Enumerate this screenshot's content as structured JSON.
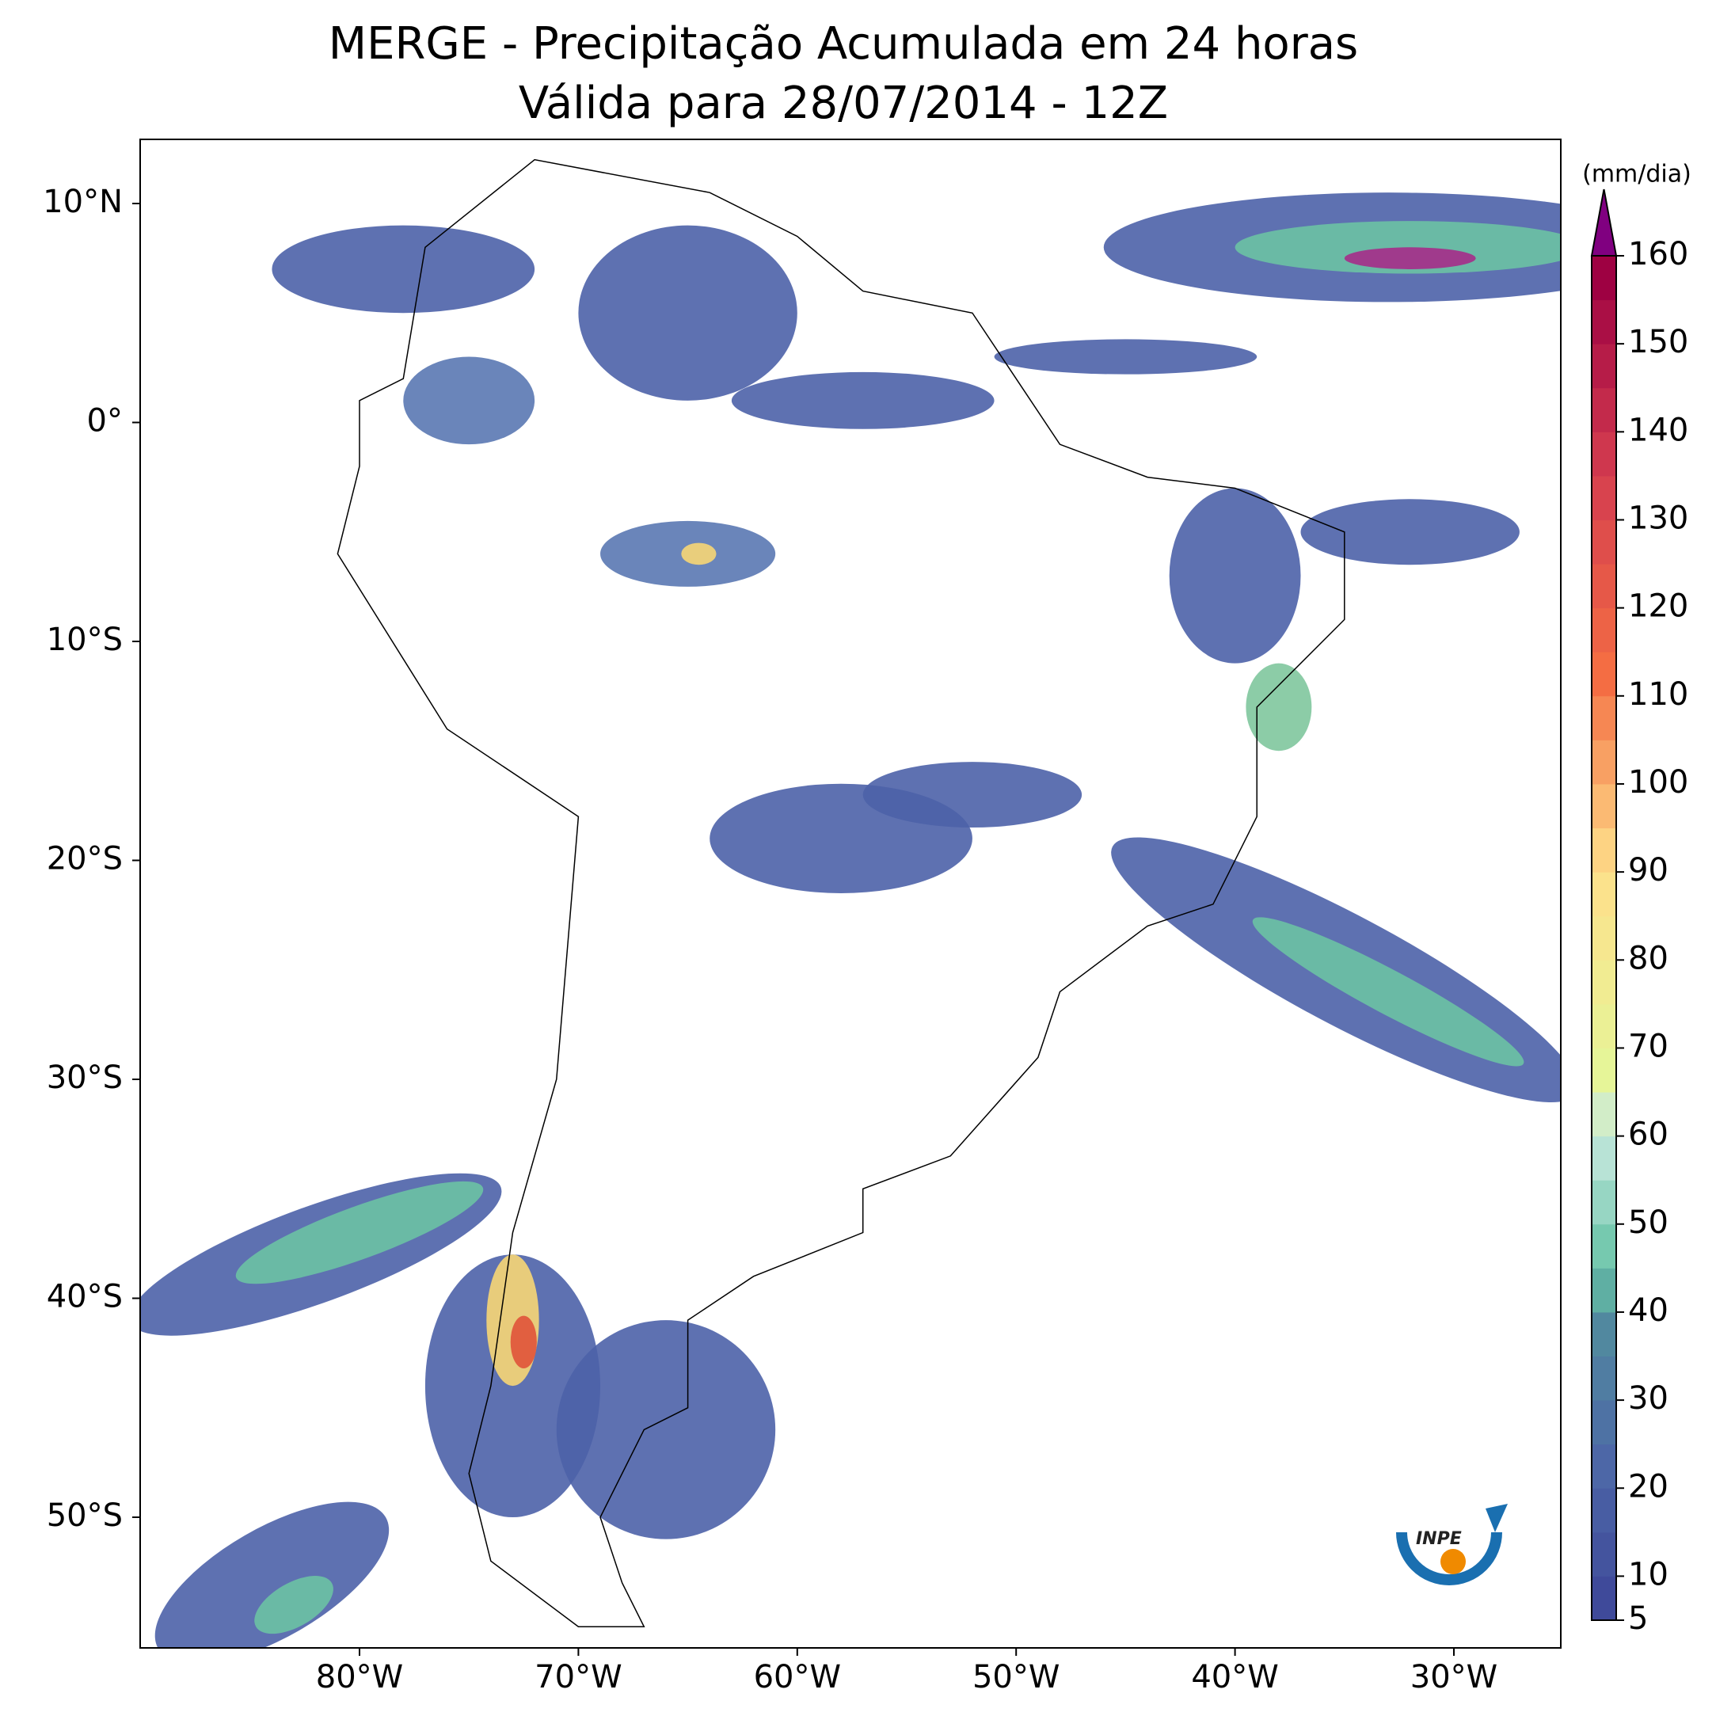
{
  "title": "MERGE - Precipitação Acumulada em 24 horas",
  "subtitle": "Válida para 28/07/2014 - 12Z",
  "map": {
    "lon_ticks": [
      {
        "value": -80,
        "label": "80°W"
      },
      {
        "value": -70,
        "label": "70°W"
      },
      {
        "value": -60,
        "label": "60°W"
      },
      {
        "value": -50,
        "label": "50°W"
      },
      {
        "value": -40,
        "label": "40°W"
      },
      {
        "value": -30,
        "label": "30°W"
      }
    ],
    "lat_ticks": [
      {
        "value": 10,
        "label": "10°N"
      },
      {
        "value": 0,
        "label": "0°"
      },
      {
        "value": -10,
        "label": "10°S"
      },
      {
        "value": -20,
        "label": "20°S"
      },
      {
        "value": -30,
        "label": "30°S"
      },
      {
        "value": -40,
        "label": "40°S"
      },
      {
        "value": -50,
        "label": "50°S"
      }
    ]
  },
  "colorbar": {
    "label": "(mm/dia)",
    "lim": [
      5,
      160
    ],
    "ticks": [
      5,
      10,
      20,
      30,
      40,
      50,
      60,
      70,
      80,
      90,
      100,
      110,
      120,
      130,
      140,
      150,
      160
    ]
  },
  "logo": "INPE"
}
